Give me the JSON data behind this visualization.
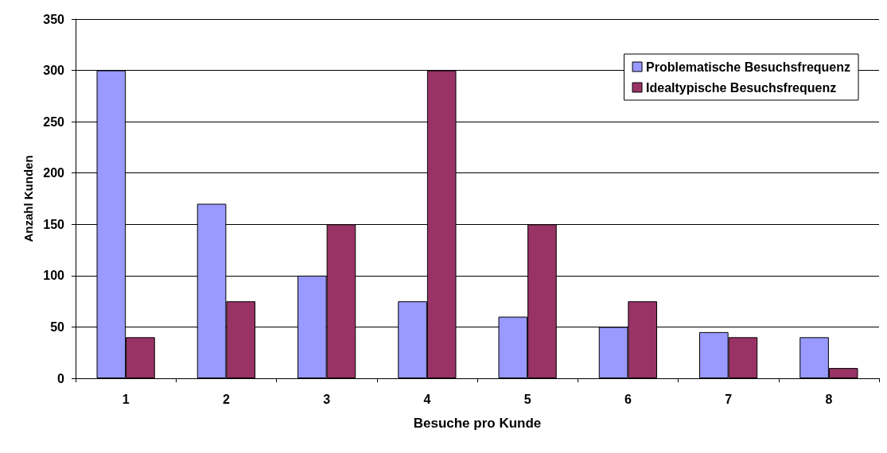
{
  "chart_data": {
    "type": "bar",
    "xlabel": "Besuche pro Kunde",
    "ylabel": "Anzahl Kunden",
    "categories": [
      "1",
      "2",
      "3",
      "4",
      "5",
      "6",
      "7",
      "8"
    ],
    "series": [
      {
        "name": "Problematische Besuchsfrequenz",
        "color": "#9999ff",
        "values": [
          300,
          170,
          100,
          75,
          60,
          50,
          45,
          40
        ]
      },
      {
        "name": "Idealtypische Besuchsfrequenz",
        "color": "#993366",
        "values": [
          40,
          75,
          150,
          300,
          150,
          75,
          40,
          10
        ]
      }
    ],
    "ylim": [
      0,
      350
    ],
    "yticks": [
      0,
      50,
      100,
      150,
      200,
      250,
      300,
      350
    ],
    "grid": "y",
    "legend": "top right"
  }
}
